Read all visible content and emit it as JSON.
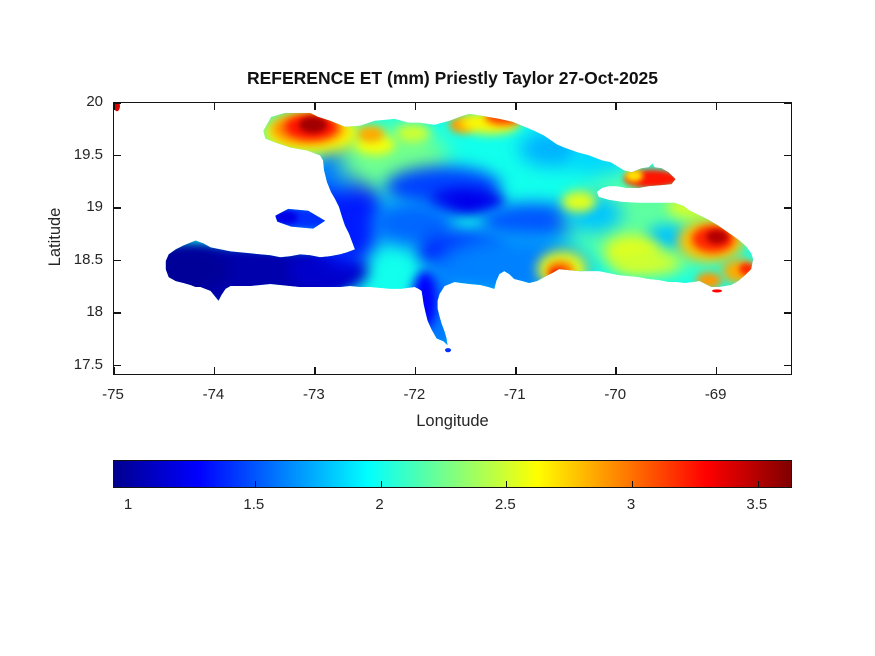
{
  "figure": {
    "title": "REFERENCE ET (mm) Priestly Taylor 27-Oct-2025",
    "background": "#ffffff",
    "text_color": "#262626"
  },
  "axes": {
    "xlabel": "Longitude",
    "ylabel": "Latitude",
    "x_tick_labels": [
      "-75",
      "-74",
      "-73",
      "-72",
      "-71",
      "-70",
      "-69"
    ],
    "y_tick_labels": [
      "20",
      "19.5",
      "19",
      "18.5",
      "18",
      "17.5"
    ]
  },
  "colorbar": {
    "tick_labels": [
      "1",
      "1.5",
      "2",
      "2.5",
      "3",
      "3.5"
    ],
    "orientation": "horizontal",
    "colormap": "jet"
  },
  "chart_data": {
    "type": "heatmap",
    "title": "REFERENCE ET (mm) Priestly Taylor 27-Oct-2025",
    "xlabel": "Longitude",
    "ylabel": "Latitude",
    "region": "Hispaniola (Haiti and Dominican Republic)",
    "xlim": [
      -75,
      -68.24
    ],
    "ylim": [
      17.4,
      20
    ],
    "x_ticks": [
      -75,
      -74,
      -73,
      -72,
      -71,
      -70,
      -69
    ],
    "y_ticks": [
      20,
      19.5,
      19,
      18.5,
      18,
      17.5
    ],
    "grid": false,
    "colormap": "jet",
    "clim": [
      0.94,
      3.64
    ],
    "colorbar_ticks": [
      1,
      1.5,
      2,
      2.5,
      3,
      3.5
    ],
    "units": "mm",
    "base_et": 2.0,
    "features": [
      {
        "name": "tiburon-peninsula-low",
        "lon": -73.81,
        "lat": 18.33,
        "rx": 1.15,
        "ry": 0.3,
        "et": 1.03,
        "soft": 6
      },
      {
        "name": "tiburon-west-dark",
        "lon": -74.3,
        "lat": 18.4,
        "rx": 0.45,
        "ry": 0.24,
        "et": 0.97,
        "soft": 6
      },
      {
        "name": "tiburon-east",
        "lon": -72.86,
        "lat": 18.38,
        "rx": 0.4,
        "ry": 0.21,
        "et": 1.12,
        "soft": 7
      },
      {
        "name": "haiti-west-coast-blue",
        "lon": -72.66,
        "lat": 18.95,
        "rx": 0.35,
        "ry": 0.52,
        "et": 1.35,
        "soft": 9
      },
      {
        "name": "artibonite-blue",
        "lon": -72.76,
        "lat": 19.38,
        "rx": 0.22,
        "ry": 0.25,
        "et": 1.6,
        "soft": 9
      },
      {
        "name": "north-haiti-green",
        "lon": -72.21,
        "lat": 19.48,
        "rx": 0.55,
        "ry": 0.32,
        "et": 2.25,
        "soft": 11
      },
      {
        "name": "cordillera-blue-west",
        "lon": -71.71,
        "lat": 19.19,
        "rx": 0.58,
        "ry": 0.2,
        "et": 1.45,
        "soft": 8
      },
      {
        "name": "cordillera-dark-core",
        "lon": -71.47,
        "lat": 19.05,
        "rx": 0.38,
        "ry": 0.13,
        "et": 1.22,
        "soft": 6
      },
      {
        "name": "cordillera-blue-east",
        "lon": -70.82,
        "lat": 18.86,
        "rx": 0.52,
        "ry": 0.18,
        "et": 1.5,
        "soft": 8
      },
      {
        "name": "southeast-haiti-blue",
        "lon": -72.01,
        "lat": 18.84,
        "rx": 0.42,
        "ry": 0.23,
        "et": 1.55,
        "soft": 9
      },
      {
        "name": "enriquillo-dark-blue",
        "lon": -71.52,
        "lat": 18.57,
        "rx": 0.45,
        "ry": 0.2,
        "et": 1.35,
        "soft": 8
      },
      {
        "name": "south-dr-blue",
        "lon": -71.02,
        "lat": 18.43,
        "rx": 0.78,
        "ry": 0.32,
        "et": 1.62,
        "soft": 11
      },
      {
        "name": "barahona-blue",
        "lon": -71.76,
        "lat": 18.0,
        "rx": 0.27,
        "ry": 0.42,
        "et": 1.6,
        "soft": 8
      },
      {
        "name": "barahona-west-dark",
        "lon": -71.89,
        "lat": 18.1,
        "rx": 0.12,
        "ry": 0.28,
        "et": 1.28,
        "soft": 5
      },
      {
        "name": "cibao-blue-1",
        "lon": -70.62,
        "lat": 19.56,
        "rx": 0.33,
        "ry": 0.18,
        "et": 1.75,
        "soft": 9
      },
      {
        "name": "cibao-blue-2",
        "lon": -70.1,
        "lat": 19.47,
        "rx": 0.33,
        "ry": 0.2,
        "et": 1.85,
        "soft": 9
      },
      {
        "name": "east-dr-green",
        "lon": -69.57,
        "lat": 18.86,
        "rx": 0.88,
        "ry": 0.5,
        "et": 2.2,
        "soft": 13
      },
      {
        "name": "central-blue-pocket",
        "lon": -70.2,
        "lat": 18.93,
        "rx": 0.28,
        "ry": 0.18,
        "et": 1.8,
        "soft": 9
      },
      {
        "name": "east-dr-blue-pocket",
        "lon": -69.47,
        "lat": 18.71,
        "rx": 0.21,
        "ry": 0.12,
        "et": 1.8,
        "soft": 7
      },
      {
        "name": "east-dr-yellow-1",
        "lon": -69.82,
        "lat": 18.57,
        "rx": 0.28,
        "ry": 0.16,
        "et": 2.55,
        "soft": 7
      },
      {
        "name": "east-dr-yellow-2",
        "lon": -69.23,
        "lat": 19.0,
        "rx": 0.24,
        "ry": 0.12,
        "et": 2.5,
        "soft": 6
      },
      {
        "name": "central-yellow-patch",
        "lon": -70.35,
        "lat": 19.05,
        "rx": 0.17,
        "ry": 0.1,
        "et": 2.55,
        "soft": 5
      },
      {
        "name": "south-coast-yellow",
        "lon": -69.67,
        "lat": 18.46,
        "rx": 0.34,
        "ry": 0.12,
        "et": 2.5,
        "soft": 7
      },
      {
        "name": "nw-fringe-yellow",
        "lon": -73.03,
        "lat": 19.71,
        "rx": 0.5,
        "ry": 0.21,
        "et": 2.65,
        "soft": 7
      },
      {
        "name": "nw-orange",
        "lon": -73.06,
        "lat": 19.75,
        "rx": 0.36,
        "ry": 0.15,
        "et": 2.95,
        "soft": 5
      },
      {
        "name": "nw-red",
        "lon": -73.03,
        "lat": 19.77,
        "rx": 0.26,
        "ry": 0.12,
        "et": 3.25,
        "soft": 4
      },
      {
        "name": "nw-dark-red-core",
        "lon": -73.01,
        "lat": 19.79,
        "rx": 0.14,
        "ry": 0.08,
        "et": 3.55,
        "soft": 3
      },
      {
        "name": "north-haiti-yellow",
        "lon": -72.39,
        "lat": 19.6,
        "rx": 0.2,
        "ry": 0.1,
        "et": 2.6,
        "soft": 5
      },
      {
        "name": "north-haiti-yellow-2",
        "lon": -72.01,
        "lat": 19.71,
        "rx": 0.17,
        "ry": 0.09,
        "et": 2.5,
        "soft": 5
      },
      {
        "name": "north-haiti-orange-patch",
        "lon": -72.43,
        "lat": 19.7,
        "rx": 0.13,
        "ry": 0.08,
        "et": 2.85,
        "soft": 4
      },
      {
        "name": "north-coast-orange-1",
        "lon": -71.52,
        "lat": 19.79,
        "rx": 0.13,
        "ry": 0.08,
        "et": 2.9,
        "soft": 4
      },
      {
        "name": "north-coast-yellow-band",
        "lon": -71.24,
        "lat": 19.81,
        "rx": 0.3,
        "ry": 0.11,
        "et": 2.65,
        "soft": 5
      },
      {
        "name": "north-coast-red",
        "lon": -71.1,
        "lat": 19.87,
        "rx": 0.19,
        "ry": 0.08,
        "et": 3.15,
        "soft": 4
      },
      {
        "name": "north-coast-orange-2",
        "lon": -70.52,
        "lat": 19.88,
        "rx": 0.2,
        "ry": 0.08,
        "et": 2.9,
        "soft": 4
      },
      {
        "name": "north-coast-red-2",
        "lon": -70.46,
        "lat": 19.9,
        "rx": 0.09,
        "ry": 0.05,
        "et": 3.3,
        "soft": 3
      },
      {
        "name": "northeast-orange-ring",
        "lon": -69.03,
        "lat": 18.67,
        "rx": 0.33,
        "ry": 0.2,
        "et": 2.8,
        "soft": 6
      },
      {
        "name": "northeast-red",
        "lon": -69.01,
        "lat": 18.69,
        "rx": 0.21,
        "ry": 0.13,
        "et": 3.2,
        "soft": 4
      },
      {
        "name": "northeast-dark-red-core",
        "lon": -68.97,
        "lat": 18.71,
        "rx": 0.11,
        "ry": 0.07,
        "et": 3.5,
        "soft": 3
      },
      {
        "name": "east-tip-orange",
        "lon": -68.75,
        "lat": 18.38,
        "rx": 0.17,
        "ry": 0.12,
        "et": 2.85,
        "soft": 5
      },
      {
        "name": "east-tip-red",
        "lon": -68.67,
        "lat": 18.4,
        "rx": 0.08,
        "ry": 0.06,
        "et": 3.2,
        "soft": 3
      },
      {
        "name": "southeast-coast-orange",
        "lon": -69.05,
        "lat": 18.29,
        "rx": 0.13,
        "ry": 0.08,
        "et": 2.9,
        "soft": 4
      },
      {
        "name": "bani-yellow-ring",
        "lon": -70.52,
        "lat": 18.4,
        "rx": 0.25,
        "ry": 0.18,
        "et": 2.55,
        "soft": 6
      },
      {
        "name": "bani-orange",
        "lon": -70.54,
        "lat": 18.38,
        "rx": 0.14,
        "ry": 0.1,
        "et": 3.0,
        "soft": 4
      },
      {
        "name": "bani-red-core",
        "lon": -70.56,
        "lat": 18.34,
        "rx": 0.08,
        "ry": 0.06,
        "et": 3.35,
        "soft": 3
      },
      {
        "name": "samana-peninsula-red",
        "lon": -69.62,
        "lat": 19.27,
        "rx": 0.28,
        "ry": 0.09,
        "et": 3.25,
        "soft": 3
      },
      {
        "name": "samana-base-yellow",
        "lon": -69.8,
        "lat": 19.3,
        "rx": 0.09,
        "ry": 0.06,
        "et": 2.7,
        "soft": 3
      },
      {
        "name": "gonave-island-blue",
        "lon": -73.13,
        "lat": 18.89,
        "rx": 0.3,
        "ry": 0.12,
        "et": 1.4,
        "soft": 4
      },
      {
        "name": "gonave-dark-west",
        "lon": -73.29,
        "lat": 18.9,
        "rx": 0.13,
        "ry": 0.07,
        "et": 1.2,
        "soft": 3
      }
    ],
    "islets": [
      {
        "name": "northwest-corner-red-speck",
        "lon": -74.97,
        "lat": 19.97,
        "rx": 0.03,
        "ry": 0.05,
        "et": 3.4
      },
      {
        "name": "saona-red-speck",
        "lon": -68.97,
        "lat": 18.19,
        "rx": 0.05,
        "ry": 0.015,
        "et": 3.3
      },
      {
        "name": "beata-blue-speck",
        "lon": -71.66,
        "lat": 17.62,
        "rx": 0.03,
        "ry": 0.02,
        "et": 1.4
      }
    ]
  }
}
